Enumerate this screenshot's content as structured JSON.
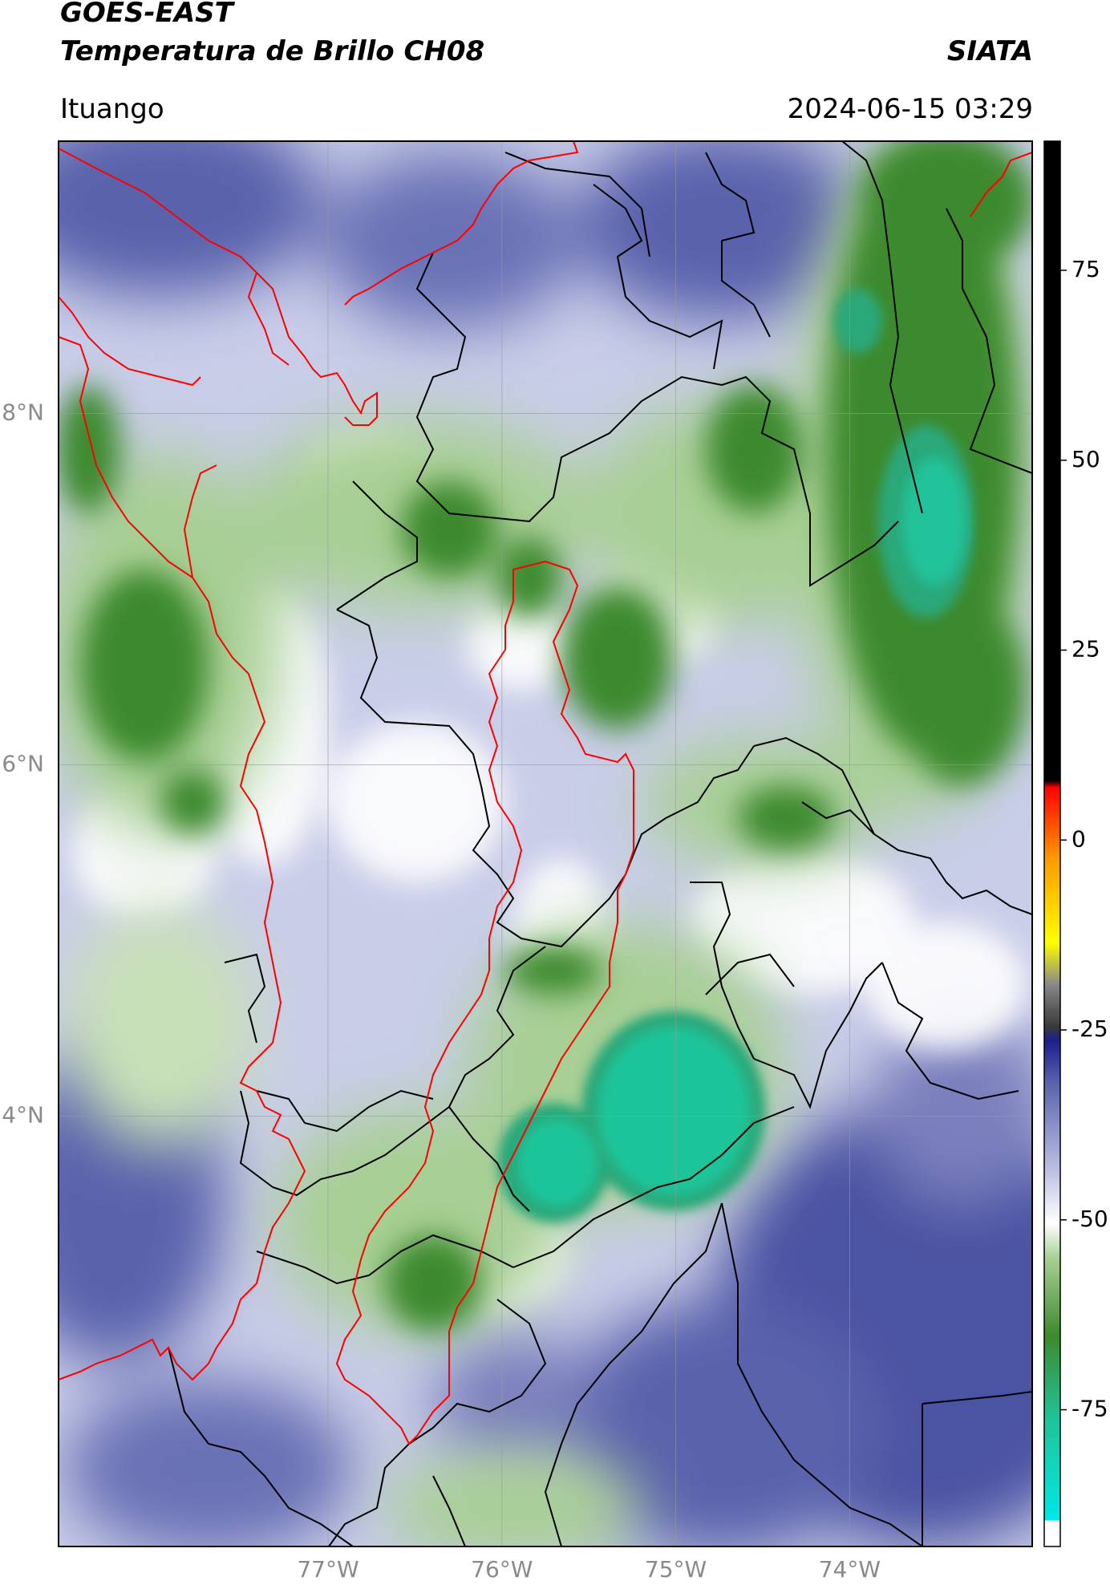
{
  "header": {
    "satellite": "GOES-EAST",
    "product": "Temperatura de Brillo CH08",
    "organization": "SIATA",
    "region": "Ituango",
    "timestamp": "2024-06-15 03:29"
  },
  "map": {
    "lat_ticks": [
      "8°N",
      "6°N",
      "4°N"
    ],
    "lon_ticks": [
      "77°W",
      "76°W",
      "75°W",
      "74°W"
    ],
    "lat_values": [
      8,
      6,
      4
    ],
    "lon_values": [
      -77,
      -76,
      -75,
      -74
    ],
    "lon_range": [
      -78.55,
      -72.95
    ],
    "lat_range": [
      1.55,
      9.55
    ],
    "grid": true,
    "colors": {
      "cold_cloud": "#1fc49a",
      "cloud_green": "#3d8a2e",
      "light_green": "#a8cf94",
      "white": "#ffffff",
      "lavender": "#b8bde0",
      "purple": "#5a62ac",
      "deep_purple": "#3e4497",
      "coastline": "#ff0000",
      "borders": "#000000"
    }
  },
  "colorbar": {
    "ticks": [
      "75",
      "50",
      "25",
      "0",
      "-25",
      "-50",
      "-75"
    ],
    "tick_values": [
      75,
      50,
      25,
      0,
      -25,
      -50,
      -75
    ],
    "range": [
      -93,
      92
    ]
  }
}
